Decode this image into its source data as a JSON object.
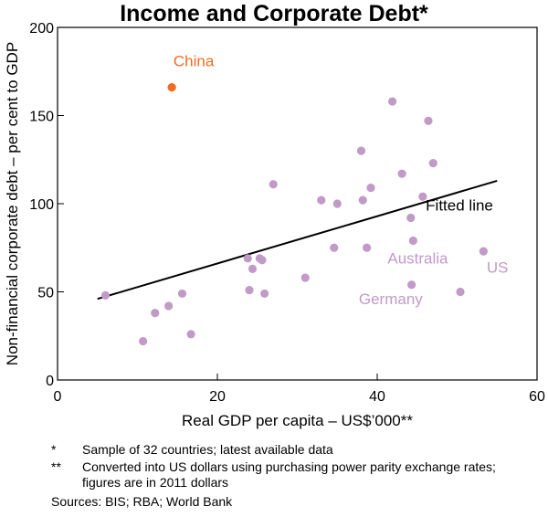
{
  "chart_data": {
    "type": "scatter",
    "title": "Income and Corporate Debt*",
    "xlabel": "Real GDP per capita – US$’000**",
    "ylabel": "Non-financial corporate debt – per cent to GDP",
    "xlim": [
      0,
      60
    ],
    "ylim": [
      0,
      200
    ],
    "xticks": [
      0,
      20,
      40,
      60
    ],
    "yticks": [
      0,
      50,
      100,
      150,
      200
    ],
    "grid": false,
    "series": [
      {
        "name": "",
        "color": "#c29ac8",
        "points": [
          {
            "x": 6.0,
            "y": 48
          },
          {
            "x": 10.7,
            "y": 22
          },
          {
            "x": 12.2,
            "y": 38
          },
          {
            "x": 13.9,
            "y": 42
          },
          {
            "x": 15.6,
            "y": 49
          },
          {
            "x": 16.7,
            "y": 26
          },
          {
            "x": 23.8,
            "y": 69
          },
          {
            "x": 24.0,
            "y": 51
          },
          {
            "x": 24.4,
            "y": 63
          },
          {
            "x": 25.3,
            "y": 69
          },
          {
            "x": 25.6,
            "y": 68
          },
          {
            "x": 25.9,
            "y": 49
          },
          {
            "x": 27.0,
            "y": 111
          },
          {
            "x": 31.0,
            "y": 58
          },
          {
            "x": 33.0,
            "y": 102
          },
          {
            "x": 34.6,
            "y": 75
          },
          {
            "x": 35.0,
            "y": 100
          },
          {
            "x": 38.0,
            "y": 130
          },
          {
            "x": 38.2,
            "y": 102
          },
          {
            "x": 38.7,
            "y": 75
          },
          {
            "x": 39.2,
            "y": 109
          },
          {
            "x": 41.9,
            "y": 158
          },
          {
            "x": 43.1,
            "y": 117
          },
          {
            "x": 44.2,
            "y": 92
          },
          {
            "x": 44.3,
            "y": 54
          },
          {
            "x": 44.5,
            "y": 79
          },
          {
            "x": 45.7,
            "y": 104
          },
          {
            "x": 46.4,
            "y": 147
          },
          {
            "x": 47.0,
            "y": 123
          },
          {
            "x": 50.4,
            "y": 50
          },
          {
            "x": 53.3,
            "y": 73
          }
        ]
      },
      {
        "name": "",
        "color": "#f26b21",
        "points": [
          {
            "x": 14.3,
            "y": 166
          }
        ]
      }
    ],
    "fitted_line": {
      "x": [
        5,
        55
      ],
      "y": [
        46,
        113
      ],
      "color": "#000000"
    },
    "annotations": [
      {
        "text": "China",
        "x": 14.5,
        "y": 178,
        "color": "#f26b21"
      },
      {
        "text": "Fitted line",
        "x": 54.5,
        "y": 96,
        "color": "#000000"
      },
      {
        "text": "Australia",
        "x": 41.3,
        "y": 66,
        "color": "#c29ac8"
      },
      {
        "text": "US",
        "x": 53.7,
        "y": 61,
        "color": "#c29ac8"
      },
      {
        "text": "Germany",
        "x": 37.7,
        "y": 43,
        "color": "#c29ac8"
      }
    ]
  },
  "notes": [
    {
      "mark": "*",
      "text": "Sample of 32 countries; latest available data"
    },
    {
      "mark": "**",
      "text": "Converted into US dollars using purchasing power parity exchange rates; figures are in 2011 dollars"
    }
  ],
  "sources": "Sources: BIS; RBA; World Bank"
}
